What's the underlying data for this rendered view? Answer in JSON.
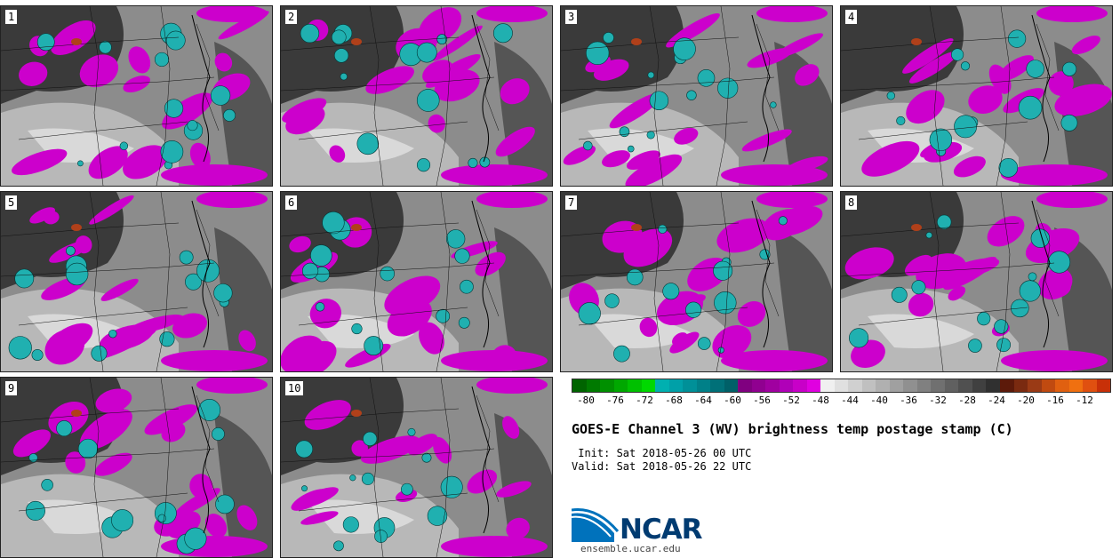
{
  "panels": [
    {
      "label": "1"
    },
    {
      "label": "2"
    },
    {
      "label": "3"
    },
    {
      "label": "4"
    },
    {
      "label": "5"
    },
    {
      "label": "6"
    },
    {
      "label": "7"
    },
    {
      "label": "8"
    },
    {
      "label": "9"
    },
    {
      "label": "10"
    }
  ],
  "colorbar": {
    "ticks": [
      "-80",
      "-76",
      "-72",
      "-68",
      "-64",
      "-60",
      "-56",
      "-52",
      "-48",
      "-44",
      "-40",
      "-36",
      "-32",
      "-28",
      "-24",
      "-20",
      "-16",
      "-12"
    ],
    "colors": [
      "#006400",
      "#007a00",
      "#009000",
      "#00a800",
      "#00c000",
      "#00d800",
      "#00b0b0",
      "#00a0a8",
      "#009098",
      "#008088",
      "#007078",
      "#006068",
      "#800080",
      "#900090",
      "#a000a0",
      "#b000b8",
      "#c800c8",
      "#e000e0",
      "#f0f0f0",
      "#e0e0e0",
      "#d0d0d0",
      "#c0c0c0",
      "#b0b0b0",
      "#a0a0a0",
      "#909090",
      "#808080",
      "#707070",
      "#606060",
      "#505050",
      "#404040",
      "#303030",
      "#5c1a0a",
      "#7a2a10",
      "#9a3a15",
      "#c04a10",
      "#e06010",
      "#f07010",
      "#e05010",
      "#c83008"
    ]
  },
  "title": "GOES-E Channel 3 (WV) brightness temp postage stamp (C)",
  "init_line": " Init: Sat 2018-05-26 00 UTC",
  "valid_line": "Valid: Sat 2018-05-26 22 UTC",
  "logo": {
    "text": "NCAR",
    "url": "ensemble.ucar.edu"
  }
}
